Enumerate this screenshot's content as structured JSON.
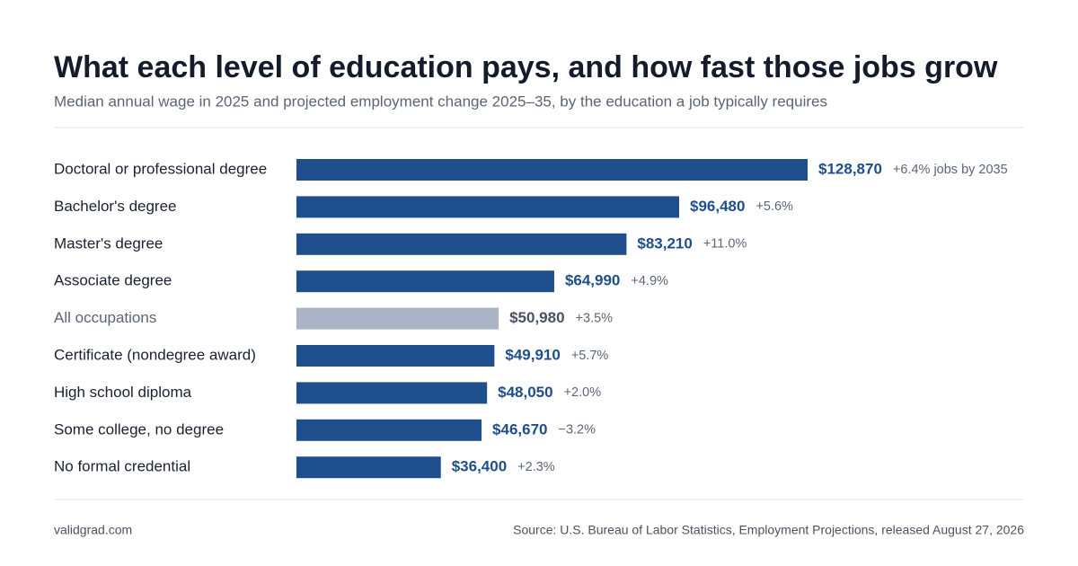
{
  "chart_data": {
    "type": "bar",
    "orientation": "horizontal",
    "title": "What each level of education pays, and how fast those jobs grow",
    "subtitle": "Median annual wage in 2025 and projected employment change 2025–35, by the education a job typically requires",
    "categories": [
      "Doctoral or professional degree",
      "Bachelor's degree",
      "Master's degree",
      "Associate degree",
      "All occupations",
      "Certificate (nondegree award)",
      "High school diploma",
      "Some college, no degree",
      "No formal credential"
    ],
    "values": [
      128870,
      96480,
      83210,
      64990,
      50980,
      49910,
      48050,
      46670,
      36400
    ],
    "value_labels": [
      "$128,870",
      "$96,480",
      "$83,210",
      "$64,990",
      "$50,980",
      "$49,910",
      "$48,050",
      "$46,670",
      "$36,400"
    ],
    "growth_labels": [
      "+6.4% jobs by 2035",
      "+5.6%",
      "+11.0%",
      "+4.9%",
      "+3.5%",
      "+5.7%",
      "+2.0%",
      "−3.2%",
      "+2.3%"
    ],
    "colors": [
      "#1f4e8c",
      "#1f4e8c",
      "#1f4e8c",
      "#1f4e8c",
      "#a9b4c4",
      "#1f4e8c",
      "#1f4e8c",
      "#1f4e8c",
      "#1f4e8c"
    ],
    "label_colors": [
      "#1f4e8c",
      "#1f4e8c",
      "#1f4e8c",
      "#1f4e8c",
      "#4a5362",
      "#1f4e8c",
      "#1f4e8c",
      "#1f4e8c",
      "#1f4e8c"
    ],
    "brand": "validgrad.com",
    "source": "Source: U.S. Bureau of Labor Statistics, Employment Projections, released August 27, 2026"
  }
}
